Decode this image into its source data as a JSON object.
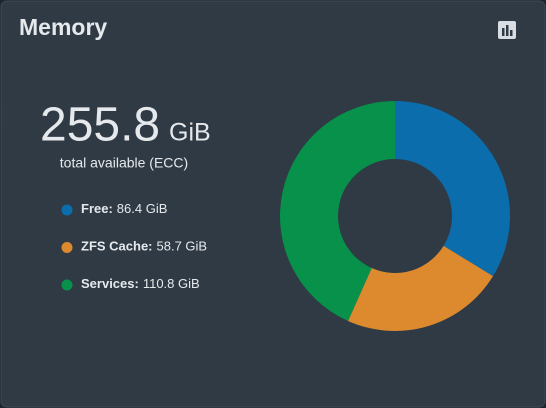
{
  "header": {
    "title": "Memory"
  },
  "summary": {
    "value": "255.8",
    "unit": "GiB",
    "caption": "total available (ECC)"
  },
  "chart_data": {
    "type": "donut",
    "categories": [
      "Free:",
      "ZFS Cache:",
      "Services:"
    ],
    "values": [
      86.4,
      58.7,
      110.8
    ],
    "value_labels": [
      "86.4 GiB",
      "58.7 GiB",
      "110.8 GiB"
    ],
    "colors": [
      "#0b6dab",
      "#dd8a2f",
      "#07914b"
    ]
  }
}
